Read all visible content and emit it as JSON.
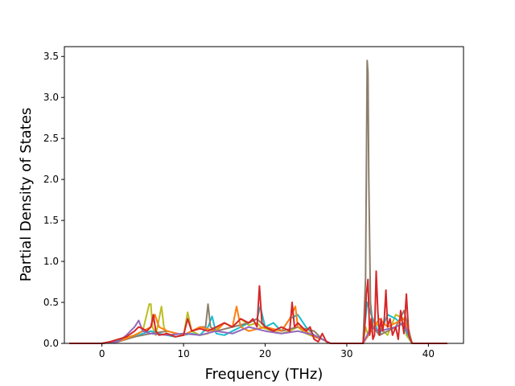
{
  "chart_data": {
    "type": "line",
    "title": "",
    "xlabel": "Frequency (THz)",
    "ylabel": "Partial Density of States",
    "xlim": [
      -4.6,
      44.3
    ],
    "ylim": [
      0,
      3.62
    ],
    "xticks": [
      0,
      10,
      20,
      30,
      40
    ],
    "xtick_labels": [
      "0",
      "10",
      "20",
      "30",
      "40"
    ],
    "yticks": [
      0.0,
      0.5,
      1.0,
      1.5,
      2.0,
      2.5,
      3.0,
      3.5
    ],
    "ytick_labels": [
      "0.0",
      "0.5",
      "1.0",
      "1.5",
      "2.0",
      "2.5",
      "3.0",
      "3.5"
    ],
    "grid": false,
    "legend": "none",
    "series": [
      {
        "color": "#bcbd22",
        "x": [
          -4,
          0,
          1,
          2,
          3,
          4,
          5,
          5.8,
          6.0,
          6.2,
          6.6,
          7,
          7.3,
          7.6,
          8,
          9,
          10,
          10.5,
          11,
          12,
          13,
          14,
          15,
          16,
          17,
          18,
          19,
          19.5,
          20,
          21,
          22,
          23,
          24,
          25,
          26,
          27,
          28,
          30,
          31,
          32,
          32.3,
          32.6,
          33,
          34,
          35,
          36,
          37,
          37.3,
          38,
          40,
          42.3
        ],
        "y": [
          0,
          0,
          0.02,
          0.05,
          0.07,
          0.1,
          0.15,
          0.48,
          0.48,
          0.2,
          0.1,
          0.3,
          0.45,
          0.2,
          0.1,
          0.08,
          0.1,
          0.38,
          0.15,
          0.1,
          0.12,
          0.18,
          0.25,
          0.2,
          0.3,
          0.22,
          0.25,
          0.2,
          0.18,
          0.15,
          0.12,
          0.15,
          0.2,
          0.12,
          0.08,
          0.05,
          0,
          0,
          0,
          0,
          0.2,
          0.1,
          0.3,
          0.2,
          0.1,
          0.35,
          0.3,
          0.1,
          0,
          0,
          0
        ]
      },
      {
        "color": "#17becf",
        "x": [
          -4,
          0,
          2,
          4,
          5,
          6,
          7,
          8,
          9,
          10,
          11,
          12,
          13,
          13.5,
          14,
          15,
          16,
          17,
          18,
          19,
          19.4,
          20,
          21,
          22,
          23,
          24,
          25,
          26,
          27,
          28,
          30,
          31,
          32,
          32.5,
          33,
          34,
          35,
          36,
          37,
          38,
          42.3
        ],
        "y": [
          0,
          0,
          0.03,
          0.08,
          0.12,
          0.15,
          0.12,
          0.1,
          0.08,
          0.1,
          0.12,
          0.1,
          0.2,
          0.33,
          0.12,
          0.1,
          0.15,
          0.2,
          0.25,
          0.3,
          0.45,
          0.2,
          0.25,
          0.15,
          0.3,
          0.35,
          0.2,
          0.1,
          0.05,
          0,
          0,
          0,
          0,
          0.5,
          0.35,
          0.1,
          0.35,
          0.3,
          0.2,
          0,
          0
        ]
      },
      {
        "color": "#8c7e6c",
        "x": [
          -4,
          0,
          2,
          4,
          6,
          8,
          10,
          12,
          12.7,
          13,
          13.3,
          14,
          16,
          18,
          19,
          20,
          22,
          24,
          26,
          27,
          28,
          30,
          31,
          32,
          32.3,
          32.5,
          32.6,
          32.7,
          32.9,
          33.2,
          34,
          36,
          37,
          37.5,
          38,
          42.3
        ],
        "y": [
          0,
          0,
          0.02,
          0.08,
          0.12,
          0.15,
          0.1,
          0.2,
          0.2,
          0.48,
          0.2,
          0.15,
          0.2,
          0.25,
          0.3,
          0.2,
          0.15,
          0.2,
          0.15,
          0.05,
          0,
          0,
          0,
          0,
          0.8,
          3.45,
          3.3,
          2.0,
          0.5,
          0.2,
          0.1,
          0.2,
          0.4,
          0.2,
          0,
          0
        ]
      },
      {
        "color": "#ff7f0e",
        "x": [
          -4,
          0,
          2,
          4,
          6,
          6.5,
          7,
          8,
          10,
          12,
          14,
          15,
          16,
          16.5,
          17,
          18,
          20,
          22,
          23,
          23.7,
          24,
          25,
          26,
          27,
          28,
          30,
          31,
          32,
          33,
          34,
          35,
          36,
          37,
          38,
          42.3
        ],
        "y": [
          0,
          0,
          0.02,
          0.1,
          0.2,
          0.35,
          0.2,
          0.15,
          0.1,
          0.2,
          0.15,
          0.25,
          0.2,
          0.45,
          0.2,
          0.15,
          0.2,
          0.15,
          0.3,
          0.45,
          0.2,
          0.15,
          0.08,
          0.05,
          0,
          0,
          0,
          0,
          0.15,
          0.3,
          0.2,
          0.25,
          0.3,
          0,
          0
        ]
      },
      {
        "color": "#9467bd",
        "x": [
          -4,
          0,
          2,
          3,
          4,
          4.5,
          5,
          6,
          8,
          10,
          12,
          14,
          16,
          18,
          20,
          22,
          24,
          26,
          28,
          30,
          32,
          33,
          34,
          36,
          37,
          38,
          42.3
        ],
        "y": [
          0,
          0,
          0.02,
          0.1,
          0.2,
          0.28,
          0.15,
          0.12,
          0.1,
          0.12,
          0.1,
          0.15,
          0.12,
          0.2,
          0.15,
          0.12,
          0.15,
          0.1,
          0,
          0,
          0,
          0.2,
          0.15,
          0.2,
          0.25,
          0,
          0
        ]
      },
      {
        "color": "#d62728",
        "x": [
          -4,
          -1,
          0,
          1,
          2,
          3,
          4,
          4.5,
          5,
          5.5,
          6,
          6.3,
          6.6,
          7,
          8,
          9,
          10,
          10.5,
          11,
          12,
          13,
          14,
          15,
          16,
          17,
          18,
          18.5,
          19,
          19.3,
          19.6,
          20,
          21,
          22,
          23,
          23.3,
          23.6,
          24,
          25,
          25.5,
          26,
          26.5,
          27,
          27.5,
          28,
          30,
          31,
          32,
          32.2,
          32.4,
          32.6,
          32.8,
          33.0,
          33.2,
          33.4,
          33.6,
          33.8,
          34.0,
          34.2,
          34.4,
          34.6,
          34.8,
          35.0,
          35.3,
          35.6,
          36,
          36.3,
          36.6,
          37,
          37.3,
          37.6,
          38,
          40,
          42.3
        ],
        "y": [
          0,
          0,
          0,
          0.02,
          0.05,
          0.08,
          0.15,
          0.2,
          0.18,
          0.15,
          0.2,
          0.35,
          0.15,
          0.1,
          0.12,
          0.08,
          0.1,
          0.3,
          0.15,
          0.18,
          0.15,
          0.2,
          0.25,
          0.2,
          0.3,
          0.25,
          0.3,
          0.2,
          0.7,
          0.25,
          0.2,
          0.15,
          0.2,
          0.15,
          0.5,
          0.2,
          0.25,
          0.15,
          0.2,
          0.05,
          0.02,
          0.12,
          0.02,
          0,
          0,
          0,
          0,
          0.2,
          0.6,
          0.78,
          0.1,
          0.3,
          0.05,
          0.1,
          0.88,
          0.4,
          0.1,
          0.3,
          0.15,
          0.3,
          0.65,
          0.2,
          0.3,
          0.1,
          0.2,
          0.05,
          0.4,
          0.12,
          0.6,
          0.1,
          0,
          0,
          0
        ]
      }
    ]
  }
}
